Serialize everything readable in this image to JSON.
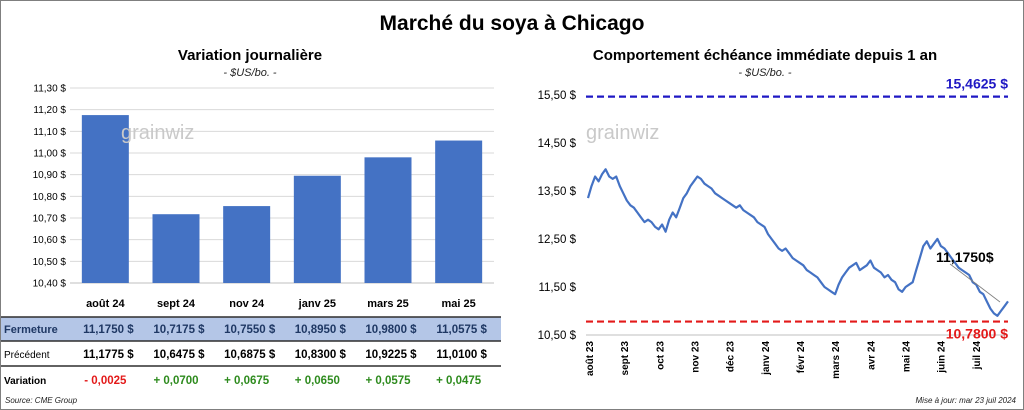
{
  "main_title": "Marché du soya à Chicago",
  "left_panel": {
    "title": "Variation journalière",
    "subtitle": "- $US/bo. -",
    "watermark": "grainwiz",
    "table": {
      "rows": [
        {
          "label": "Fermeture",
          "values": [
            "11,1750",
            "10,7175",
            "10,7550",
            "10,8950",
            "10,9800",
            "11,0575"
          ],
          "unit": "$"
        },
        {
          "label": "Précédent",
          "values": [
            "11,1775",
            "10,6475",
            "10,6875",
            "10,8300",
            "10,9225",
            "11,0100"
          ],
          "unit": "$"
        },
        {
          "label": "Variation",
          "values": [
            "- 0,0025",
            "+ 0,0700",
            "+ 0,0675",
            "+ 0,0650",
            "+ 0,0575",
            "+ 0,0475"
          ],
          "unit": ""
        }
      ]
    },
    "chart_data": {
      "type": "bar",
      "categories": [
        "août 24",
        "sept 24",
        "nov 24",
        "janv 25",
        "mars 25",
        "mai 25"
      ],
      "values": [
        11.175,
        10.7175,
        10.755,
        10.895,
        10.98,
        11.0575
      ],
      "yticks": [
        "10,40 $",
        "10,50 $",
        "10,60 $",
        "10,70 $",
        "10,80 $",
        "10,90 $",
        "11,00 $",
        "11,10 $",
        "11,20 $",
        "11,30 $"
      ],
      "ylim": [
        10.4,
        11.3
      ],
      "bar_color": "#4472c4",
      "grid": true
    }
  },
  "right_panel": {
    "title": "Comportement  échéance immédiate depuis 1 an",
    "subtitle": "- $US/bo. -",
    "watermark": "grainwiz",
    "chart_data": {
      "type": "line",
      "yticks": [
        "10,50 $",
        "11,50 $",
        "12,50 $",
        "13,50 $",
        "14,50 $",
        "15,50 $"
      ],
      "ylim": [
        10.5,
        15.6
      ],
      "xticks": [
        "août 23",
        "sept 23",
        "oct 23",
        "nov 23",
        "déc 23",
        "janv 24",
        "févr 24",
        "mars 24",
        "avr 24",
        "mai 24",
        "juin 24",
        "juil 24"
      ],
      "series": [
        {
          "color": "#4472c4",
          "values": [
            13.35,
            13.6,
            13.8,
            13.7,
            13.85,
            13.95,
            13.8,
            13.75,
            13.8,
            13.6,
            13.45,
            13.3,
            13.2,
            13.15,
            13.05,
            12.95,
            12.85,
            12.9,
            12.85,
            12.75,
            12.7,
            12.8,
            12.65,
            12.9,
            13.05,
            12.95,
            13.15,
            13.35,
            13.45,
            13.6,
            13.7,
            13.8,
            13.75,
            13.65,
            13.6,
            13.55,
            13.45,
            13.4,
            13.35,
            13.3,
            13.25,
            13.2,
            13.15,
            13.2,
            13.1,
            13.05,
            13.0,
            12.95,
            12.85,
            12.8,
            12.75,
            12.6,
            12.5,
            12.4,
            12.3,
            12.25,
            12.3,
            12.2,
            12.1,
            12.05,
            12.0,
            11.95,
            11.85,
            11.8,
            11.75,
            11.7,
            11.6,
            11.5,
            11.45,
            11.4,
            11.35,
            11.55,
            11.7,
            11.8,
            11.9,
            11.95,
            12.0,
            11.85,
            11.9,
            11.95,
            12.05,
            11.9,
            11.85,
            11.8,
            11.7,
            11.75,
            11.65,
            11.6,
            11.45,
            11.4,
            11.5,
            11.55,
            11.6,
            11.85,
            12.1,
            12.35,
            12.45,
            12.3,
            12.4,
            12.5,
            12.35,
            12.3,
            12.2,
            12.1,
            12.0,
            11.9,
            11.85,
            11.8,
            11.75,
            11.6,
            11.55,
            11.4,
            11.35,
            11.2,
            11.05,
            10.95,
            10.9,
            11.0,
            11.1,
            11.2
          ]
        }
      ],
      "reference_lines": [
        {
          "value": 15.4625,
          "label": "15,4625  $",
          "color": "#1f18c4"
        },
        {
          "value": 10.78,
          "label": "10,7800  $",
          "color": "#e31a1a"
        }
      ],
      "annotation": "11,1750$"
    }
  },
  "footer": {
    "source": "Source: CME Group",
    "updated": "Mise à jour: mar 23 juil 2024"
  }
}
